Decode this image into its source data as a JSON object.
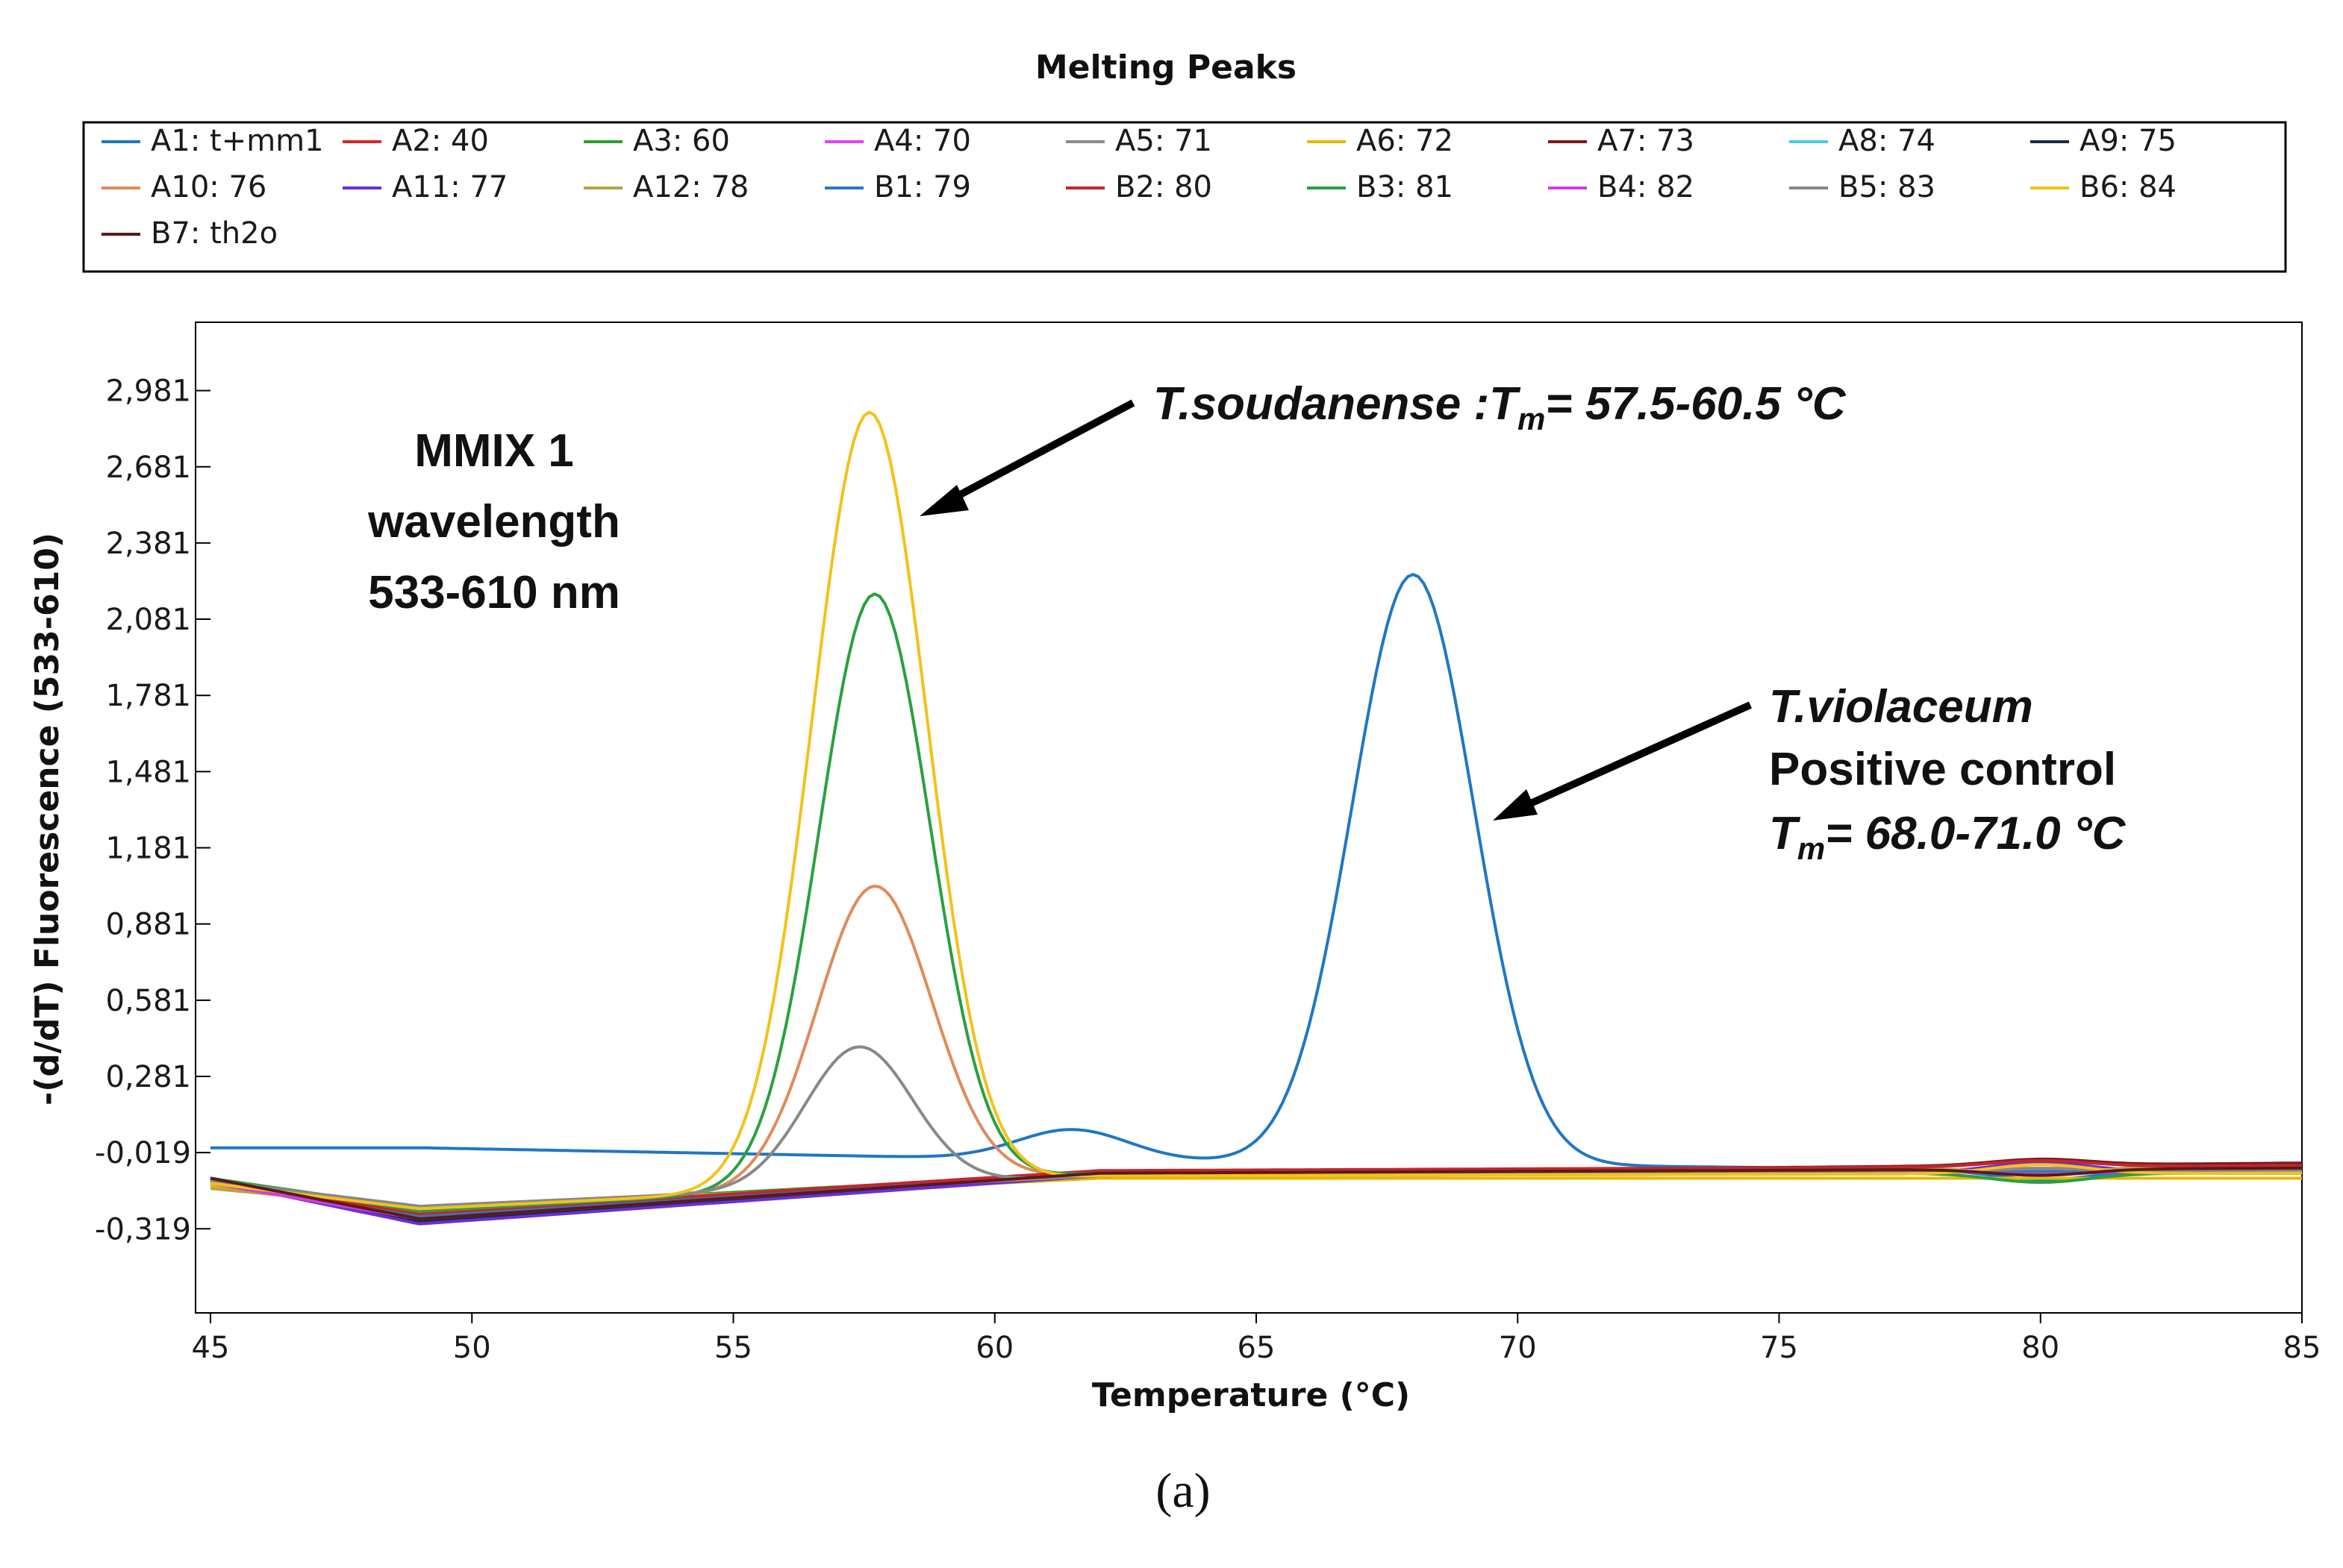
{
  "chart_data": {
    "type": "line",
    "title": "Melting Peaks",
    "xlabel": "Temperature (°C)",
    "ylabel": "-(d/dT) Fluorescence (533-610)",
    "xlim": [
      45,
      85
    ],
    "ylim": [
      -0.65,
      3.25
    ],
    "x_ticks": [
      "45",
      "50",
      "55",
      "60",
      "65",
      "70",
      "75",
      "80",
      "85"
    ],
    "y_ticks": [
      "2,981",
      "2,681",
      "2,381",
      "2,081",
      "1,781",
      "1,481",
      "1,181",
      "0,881",
      "0,581",
      "0,281",
      "-0,019",
      "-0,319"
    ],
    "y_tick_values": [
      2.981,
      2.681,
      2.381,
      2.081,
      1.781,
      1.481,
      1.181,
      0.881,
      0.581,
      0.281,
      -0.019,
      -0.319
    ],
    "legend_position": "top",
    "series": [
      {
        "name": "A1: t+mm1",
        "color": "#1f77c4",
        "baseline": [
          0.0,
          0.0,
          -0.05,
          -0.1
        ],
        "peaks": [
          {
            "center": 61.5,
            "height": 0.12,
            "width": 1.5
          },
          {
            "center": 68.0,
            "height": 2.32,
            "width": 1.65
          }
        ]
      },
      {
        "name": "A2: 40",
        "color": "#d62728",
        "baseline": [
          -0.12,
          -0.26,
          -0.1,
          -0.08
        ],
        "peaks": []
      },
      {
        "name": "A3: 60",
        "color": "#2ca02c",
        "baseline": [
          -0.12,
          -0.24,
          -0.1,
          -0.09
        ],
        "peaks": []
      },
      {
        "name": "A4: 70",
        "color": "#e040fb",
        "baseline": [
          -0.13,
          -0.28,
          -0.11,
          -0.1
        ],
        "peaks": []
      },
      {
        "name": "A5: 71",
        "color": "#8c8c8c",
        "baseline": [
          -0.14,
          -0.27,
          -0.11,
          -0.07
        ],
        "peaks": []
      },
      {
        "name": "A6: 72",
        "color": "#e6b800",
        "baseline": [
          -0.15,
          -0.25,
          -0.12,
          -0.12
        ],
        "peaks": []
      },
      {
        "name": "A7: 73",
        "color": "#7b1c1c",
        "baseline": [
          -0.12,
          -0.27,
          -0.1,
          -0.06
        ],
        "peaks": []
      },
      {
        "name": "A8: 74",
        "color": "#3fd0e0",
        "baseline": [
          -0.13,
          -0.26,
          -0.1,
          -0.1
        ],
        "peaks": []
      },
      {
        "name": "A9: 75",
        "color": "#1c2a40",
        "baseline": [
          -0.12,
          -0.29,
          -0.1,
          -0.08
        ],
        "peaks": []
      },
      {
        "name": "A10: 76",
        "color": "#e08a5a",
        "baseline": [
          -0.14,
          -0.25,
          -0.1,
          -0.09
        ],
        "peaks": [
          {
            "center": 57.7,
            "height": 1.18,
            "width": 1.55
          }
        ]
      },
      {
        "name": "A11: 77",
        "color": "#6a2fd6",
        "baseline": [
          -0.13,
          -0.3,
          -0.11,
          -0.09
        ],
        "peaks": []
      },
      {
        "name": "A12: 78",
        "color": "#b5a640",
        "baseline": [
          -0.16,
          -0.24,
          -0.11,
          -0.07
        ],
        "peaks": []
      },
      {
        "name": "B1: 79",
        "color": "#2b78c6",
        "baseline": [
          -0.12,
          -0.27,
          -0.1,
          -0.09
        ],
        "peaks": []
      },
      {
        "name": "B2: 80",
        "color": "#c4262e",
        "baseline": [
          -0.13,
          -0.26,
          -0.09,
          -0.07
        ],
        "peaks": []
      },
      {
        "name": "B3: 81",
        "color": "#2aa040",
        "baseline": [
          -0.12,
          -0.25,
          -0.1,
          -0.1
        ],
        "peaks": [
          {
            "center": 57.7,
            "height": 2.33,
            "width": 1.5
          }
        ]
      },
      {
        "name": "B4: 82",
        "color": "#d53be0",
        "baseline": [
          -0.14,
          -0.28,
          -0.1,
          -0.09
        ],
        "peaks": []
      },
      {
        "name": "B5: 83",
        "color": "#888888",
        "baseline": [
          -0.13,
          -0.23,
          -0.11,
          -0.09
        ],
        "peaks": [
          {
            "center": 57.4,
            "height": 0.55,
            "width": 1.45
          }
        ]
      },
      {
        "name": "B6: 84",
        "color": "#f2c21c",
        "baseline": [
          -0.14,
          -0.24,
          -0.11,
          -0.1
        ],
        "peaks": [
          {
            "center": 57.6,
            "height": 3.05,
            "width": 1.55
          },
          {
            "center": 57.7,
            "height": 0.0,
            "width": 1.0
          }
        ]
      },
      {
        "name": "B7: th2o",
        "color": "#5a1a1a",
        "baseline": [
          -0.12,
          -0.28,
          -0.1,
          -0.08
        ],
        "peaks": []
      }
    ],
    "extra_series_note": "",
    "annotations": {
      "mmix": [
        "MMIX 1",
        "wavelength",
        "533-610 nm"
      ],
      "soudanense": {
        "species": "T.soudanense",
        "rest": " :T",
        "sub": "m",
        "range": "= 57.5-60.5 °C"
      },
      "violaceum": {
        "species": "T.violaceum",
        "line2": "Positive control",
        "tm": "T",
        "sub": "m",
        "range": "= 68.0-71.0 °C"
      }
    }
  },
  "caption": "(a)"
}
